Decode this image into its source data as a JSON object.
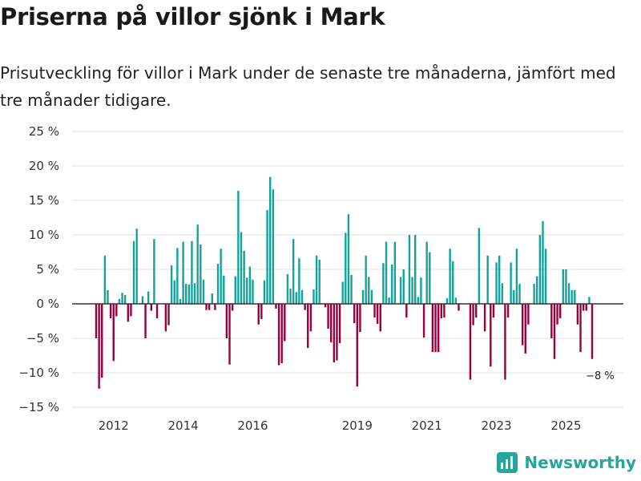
{
  "title": "Priserna på villor sjönk i Mark",
  "subtitle": "Prisutveckling för villor i Mark under de senaste tre månaderna, jämfört med tre månader tidigare.",
  "brand": {
    "name": "Newsworthy"
  },
  "colors": {
    "positive": "#14a39a",
    "negative": "#99003c",
    "grid": "#e0e0e0",
    "axis": "#333333",
    "brand": "#26a69a"
  },
  "chart_data": {
    "type": "bar",
    "title": "Priserna på villor sjönk i Mark",
    "xlabel": "",
    "ylabel": "",
    "ylim": [
      -15,
      25
    ],
    "yticks": [
      -15,
      -10,
      -5,
      0,
      5,
      10,
      15,
      20,
      25
    ],
    "ytick_labels": [
      "−15 %",
      "−10 %",
      "−5 %",
      "0 %",
      "5 %",
      "10 %",
      "15 %",
      "20 %",
      "25 %"
    ],
    "xticks": [
      {
        "label": "2012",
        "index": 6
      },
      {
        "label": "2014",
        "index": 30
      },
      {
        "label": "2016",
        "index": 54
      },
      {
        "label": "2019",
        "index": 90
      },
      {
        "label": "2021",
        "index": 114
      },
      {
        "label": "2023",
        "index": 138
      },
      {
        "label": "2025",
        "index": 162
      }
    ],
    "start": "2011-07",
    "frequency": "monthly",
    "values": [
      -5,
      -12.3,
      -10.7,
      7,
      2,
      -2.1,
      -8.3,
      -1.8,
      0.7,
      1.6,
      1.3,
      -2.6,
      -1.8,
      9.1,
      10.9,
      0,
      1.1,
      -5,
      1.8,
      -1,
      9.4,
      -2.1,
      0,
      0,
      -4,
      -3.1,
      5.6,
      3.4,
      8.1,
      0.7,
      9,
      2.9,
      2.8,
      9.1,
      3,
      11.5,
      8.6,
      3.5,
      -0.9,
      -0.9,
      1.5,
      -0.9,
      5.8,
      8,
      4.1,
      -5,
      -8.8,
      -1,
      4,
      16.4,
      10.4,
      7.7,
      3.8,
      5.4,
      3.5,
      0,
      -3,
      -2.2,
      3.4,
      13.6,
      18.4,
      16.6,
      -0.7,
      -8.9,
      -8.6,
      -5.4,
      4.3,
      2.2,
      9.4,
      1.7,
      6.6,
      2,
      -0.9,
      -6.4,
      -4,
      2.1,
      7,
      6.4,
      0,
      -0.5,
      -3.6,
      -5.6,
      -8.5,
      -8.2,
      -5.7,
      3.2,
      10.3,
      13,
      4.2,
      -2.8,
      -12,
      -4.1,
      2,
      7,
      3.9,
      2,
      -2,
      -2.9,
      -4,
      5.9,
      9,
      0.9,
      5.7,
      9,
      0,
      3.9,
      5,
      -2,
      10,
      3.9,
      10,
      1,
      3.8,
      -4.9,
      9,
      7.5,
      -7,
      -7,
      -7,
      -2.1,
      -2,
      0.8,
      8,
      6.2,
      0.9,
      -1,
      0,
      0,
      0,
      -11,
      -3.1,
      -2,
      11,
      0,
      -4,
      7,
      -9.1,
      -2,
      6,
      7,
      3,
      -11,
      -2,
      6,
      2,
      8,
      2.9,
      -6,
      -7.2,
      -3,
      0,
      2.9,
      4,
      10,
      12,
      8,
      0,
      -5,
      -8,
      -3,
      -2.1,
      5,
      5,
      3,
      2,
      2,
      -3,
      -7,
      -1,
      -1,
      1,
      -8
    ],
    "annotations": [
      {
        "text": "−8 %",
        "index": 174,
        "value": -8
      }
    ]
  }
}
